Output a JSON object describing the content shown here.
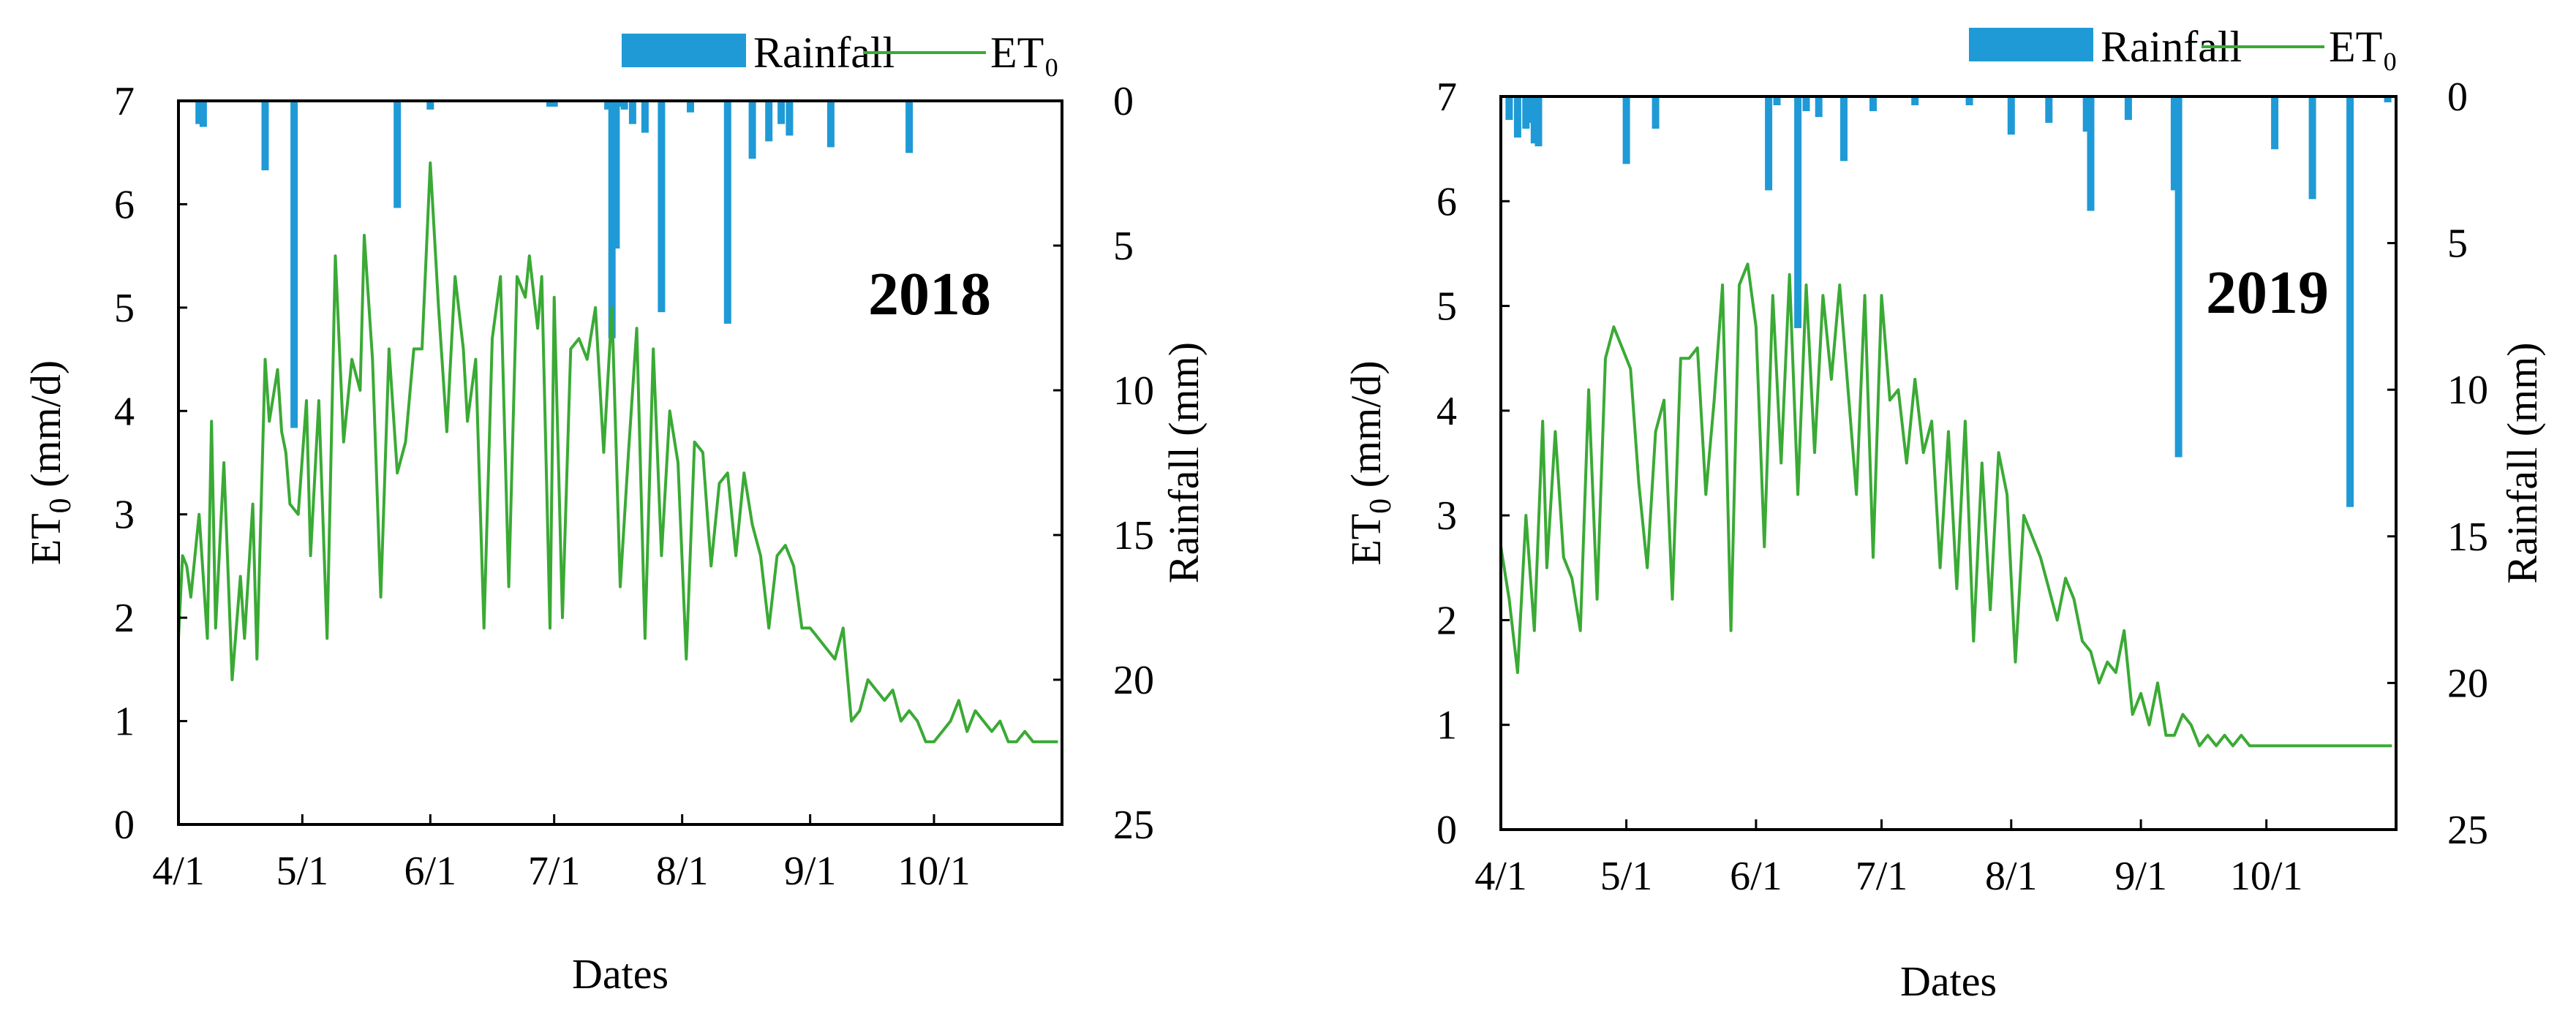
{
  "chart_data": [
    {
      "type": "line",
      "secondary_type": "bar",
      "year_label": "2018",
      "xlabel": "Dates",
      "ylabel": "ET0 (mm/d)",
      "y2label": "Rainfall (mm)",
      "x_ticks": [
        "4/1",
        "5/1",
        "6/1",
        "7/1",
        "8/1",
        "9/1",
        "10/1"
      ],
      "x_range": [
        "4/1",
        "10/31"
      ],
      "ylim": [
        0,
        7
      ],
      "y_ticks": [
        0,
        1,
        2,
        3,
        4,
        5,
        6,
        7
      ],
      "y2lim_reversed": [
        0,
        25
      ],
      "y2_ticks": [
        0,
        5,
        10,
        15,
        20,
        25
      ],
      "legend": {
        "position": "top",
        "entries": [
          "Rainfall",
          "ET₀"
        ]
      },
      "grid": false,
      "series": [
        {
          "name": "ET₀",
          "kind": "line",
          "axis": "left",
          "color": "#3aaa35",
          "x": [
            "4/1",
            "4/2",
            "4/3",
            "4/4",
            "4/6",
            "4/8",
            "4/9",
            "4/10",
            "4/12",
            "4/14",
            "4/16",
            "4/17",
            "4/19",
            "4/20",
            "4/22",
            "4/23",
            "4/25",
            "4/26",
            "4/27",
            "4/28",
            "4/30",
            "5/2",
            "5/3",
            "5/5",
            "5/7",
            "5/9",
            "5/11",
            "5/13",
            "5/15",
            "5/16",
            "5/18",
            "5/20",
            "5/22",
            "5/24",
            "5/26",
            "5/28",
            "5/30",
            "6/1",
            "6/3",
            "6/5",
            "6/7",
            "6/9",
            "6/10",
            "6/12",
            "6/14",
            "6/16",
            "6/18",
            "6/20",
            "6/22",
            "6/24",
            "6/25",
            "6/27",
            "6/28",
            "6/30",
            "7/1",
            "7/3",
            "7/5",
            "7/7",
            "7/9",
            "7/11",
            "7/13",
            "7/15",
            "7/17",
            "7/19",
            "7/21",
            "7/23",
            "7/25",
            "7/27",
            "7/29",
            "7/31",
            "8/2",
            "8/4",
            "8/6",
            "8/8",
            "8/10",
            "8/12",
            "8/14",
            "8/16",
            "8/18",
            "8/20",
            "8/22",
            "8/24",
            "8/26",
            "8/28",
            "8/30",
            "9/1",
            "9/3",
            "9/5",
            "9/7",
            "9/9",
            "9/11",
            "9/13",
            "9/15",
            "9/17",
            "9/19",
            "9/21",
            "9/23",
            "9/25",
            "9/27",
            "9/29",
            "10/1",
            "10/3",
            "10/5",
            "10/7",
            "10/9",
            "10/11",
            "10/13",
            "10/15",
            "10/17",
            "10/19",
            "10/21",
            "10/23",
            "10/25",
            "10/27",
            "10/29",
            "10/31"
          ],
          "values": [
            1.8,
            2.6,
            2.5,
            2.2,
            3.0,
            1.8,
            3.9,
            1.9,
            3.5,
            1.4,
            2.4,
            1.8,
            3.1,
            1.6,
            4.5,
            3.9,
            4.4,
            3.8,
            3.6,
            3.1,
            3.0,
            4.1,
            2.6,
            4.1,
            1.8,
            5.5,
            3.7,
            4.5,
            4.2,
            5.7,
            4.5,
            2.2,
            4.6,
            3.4,
            3.7,
            4.6,
            4.6,
            6.4,
            5.0,
            3.8,
            5.3,
            4.6,
            3.9,
            4.5,
            1.9,
            4.7,
            5.3,
            2.3,
            5.3,
            5.1,
            5.5,
            4.8,
            5.3,
            1.9,
            5.1,
            2.0,
            4.6,
            4.7,
            4.5,
            5.0,
            3.6,
            5.0,
            2.3,
            3.6,
            4.8,
            1.8,
            4.6,
            2.6,
            4.0,
            3.5,
            1.6,
            3.7,
            3.6,
            2.5,
            3.3,
            3.4,
            2.6,
            3.4,
            2.9,
            2.6,
            1.9,
            2.6,
            2.7,
            2.5,
            1.9,
            1.9,
            1.8,
            1.7,
            1.6,
            1.9,
            1.0,
            1.1,
            1.4,
            1.3,
            1.2,
            1.3,
            1.0,
            1.1,
            1.0,
            0.8,
            0.8,
            0.9,
            1.0,
            1.2,
            0.9,
            1.1,
            1.0,
            0.9,
            1.0,
            0.8,
            0.8,
            0.9,
            0.8,
            0.8,
            0.8,
            0.8
          ]
        },
        {
          "name": "Rainfall",
          "kind": "bar",
          "axis": "right",
          "color": "#1f9ad6",
          "x": [
            "4/6",
            "4/7",
            "4/22",
            "4/29",
            "5/24",
            "6/1",
            "6/30",
            "7/1",
            "7/14",
            "7/15",
            "7/16",
            "7/17",
            "7/18",
            "7/20",
            "7/23",
            "7/27",
            "8/3",
            "8/12",
            "8/18",
            "8/22",
            "8/25",
            "8/27",
            "9/6",
            "9/25"
          ],
          "values": [
            0.8,
            0.9,
            2.4,
            11.3,
            3.7,
            0.3,
            0.2,
            0.2,
            0.3,
            8.2,
            5.1,
            0.2,
            0.3,
            0.8,
            1.1,
            7.3,
            0.4,
            7.7,
            2.0,
            1.4,
            0.8,
            1.2,
            1.6,
            1.8
          ]
        }
      ]
    },
    {
      "type": "line",
      "secondary_type": "bar",
      "year_label": "2019",
      "xlabel": "Dates",
      "ylabel": "ET0 (mm/d)",
      "y2label": "Rainfall (mm)",
      "x_ticks": [
        "4/1",
        "5/1",
        "6/1",
        "7/1",
        "8/1",
        "9/1",
        "10/1"
      ],
      "x_range": [
        "4/1",
        "10/31"
      ],
      "ylim": [
        0,
        7
      ],
      "y_ticks": [
        0,
        1,
        2,
        3,
        4,
        5,
        6,
        7
      ],
      "y2lim_reversed": [
        0,
        25
      ],
      "y2_ticks": [
        0,
        5,
        10,
        15,
        20,
        25
      ],
      "legend": {
        "position": "top",
        "entries": [
          "Rainfall",
          "ET₀"
        ]
      },
      "grid": false,
      "series": [
        {
          "name": "ET₀",
          "kind": "line",
          "axis": "left",
          "color": "#3aaa35",
          "x": [
            "4/1",
            "4/3",
            "4/5",
            "4/7",
            "4/9",
            "4/11",
            "4/12",
            "4/14",
            "4/16",
            "4/18",
            "4/20",
            "4/22",
            "4/24",
            "4/26",
            "4/28",
            "4/30",
            "5/2",
            "5/4",
            "5/6",
            "5/8",
            "5/10",
            "5/12",
            "5/14",
            "5/16",
            "5/18",
            "5/20",
            "5/22",
            "5/24",
            "5/26",
            "5/28",
            "5/30",
            "6/1",
            "6/3",
            "6/5",
            "6/7",
            "6/9",
            "6/11",
            "6/13",
            "6/15",
            "6/17",
            "6/19",
            "6/21",
            "6/23",
            "6/25",
            "6/27",
            "6/29",
            "7/1",
            "7/3",
            "7/5",
            "7/7",
            "7/9",
            "7/11",
            "7/13",
            "7/15",
            "7/17",
            "7/19",
            "7/21",
            "7/23",
            "7/25",
            "7/27",
            "7/29",
            "7/31",
            "8/2",
            "8/4",
            "8/6",
            "8/8",
            "8/10",
            "8/12",
            "8/14",
            "8/16",
            "8/18",
            "8/20",
            "8/22",
            "8/24",
            "8/26",
            "8/28",
            "8/30",
            "9/1",
            "9/3",
            "9/5",
            "9/7",
            "9/9",
            "9/11",
            "9/13",
            "9/15",
            "9/17",
            "9/19",
            "9/21",
            "9/23",
            "9/25",
            "9/27",
            "9/29",
            "10/1",
            "10/3",
            "10/5",
            "10/7",
            "10/9",
            "10/11",
            "10/13",
            "10/15",
            "10/17",
            "10/19",
            "10/21",
            "10/23",
            "10/25",
            "10/27",
            "10/29",
            "10/31"
          ],
          "values": [
            2.7,
            2.2,
            1.5,
            3.0,
            1.9,
            3.9,
            2.5,
            3.8,
            2.6,
            2.4,
            1.9,
            4.2,
            2.2,
            4.5,
            4.8,
            4.6,
            4.4,
            3.3,
            2.5,
            3.8,
            4.1,
            2.2,
            4.5,
            4.5,
            4.6,
            3.2,
            4.1,
            5.2,
            1.9,
            5.2,
            5.4,
            4.8,
            2.7,
            5.1,
            3.5,
            5.3,
            3.2,
            5.2,
            3.6,
            5.1,
            4.3,
            5.2,
            4.2,
            3.2,
            5.1,
            2.6,
            5.1,
            4.1,
            4.2,
            3.5,
            4.3,
            3.6,
            3.9,
            2.5,
            3.8,
            2.3,
            3.9,
            1.8,
            3.5,
            2.1,
            3.6,
            3.2,
            1.6,
            3.0,
            2.8,
            2.6,
            2.3,
            2.0,
            2.4,
            2.2,
            1.8,
            1.7,
            1.4,
            1.6,
            1.5,
            1.9,
            1.1,
            1.3,
            1.0,
            1.4,
            0.9,
            0.9,
            1.1,
            1.0,
            0.8,
            0.9,
            0.8,
            0.9,
            0.8,
            0.9,
            0.8,
            0.8,
            0.8,
            0.8,
            0.8,
            0.8,
            0.8,
            0.8,
            0.8,
            0.8,
            0.8,
            0.8,
            0.8,
            0.8,
            0.8,
            0.8,
            0.8,
            0.8
          ]
        },
        {
          "name": "Rainfall",
          "kind": "bar",
          "axis": "right",
          "color": "#1f9ad6",
          "x": [
            "4/3",
            "4/5",
            "4/7",
            "4/8",
            "4/9",
            "4/10",
            "5/1",
            "5/8",
            "6/4",
            "6/6",
            "6/11",
            "6/13",
            "6/16",
            "6/22",
            "6/29",
            "7/9",
            "7/22",
            "8/1",
            "8/10",
            "8/19",
            "8/20",
            "8/29",
            "9/9",
            "9/10",
            "10/3",
            "10/12",
            "10/21",
            "10/30"
          ],
          "values": [
            0.8,
            1.4,
            1.1,
            0.9,
            1.6,
            1.7,
            2.3,
            1.1,
            3.2,
            0.3,
            7.9,
            0.5,
            0.7,
            2.2,
            0.5,
            0.3,
            0.3,
            1.3,
            0.9,
            1.2,
            3.9,
            0.8,
            3.2,
            12.3,
            1.8,
            3.5,
            14.0,
            0.2
          ]
        }
      ]
    }
  ],
  "text": {
    "legend_rainfall": "Rainfall",
    "legend_et0": "ET₀",
    "left_axis_title": "ET0 (mm/d)",
    "right_axis_title": "Rainfall (mm)",
    "x_axis_title": "Dates"
  }
}
